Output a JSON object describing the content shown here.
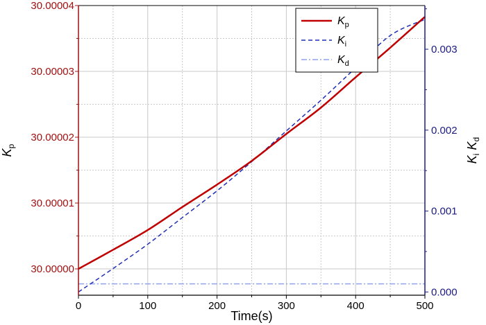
{
  "chart_data": {
    "type": "line",
    "xlabel": "Time(s)",
    "ylabel_left": {
      "base": "K",
      "sub": "p"
    },
    "ylabel_right": [
      {
        "base": "K",
        "sub": "i"
      },
      {
        "base": "K",
        "sub": "d"
      }
    ],
    "xlim": [
      0,
      500
    ],
    "ylim_left": [
      29.999996,
      30.00004
    ],
    "ylim_right": [
      -4e-05,
      0.00354
    ],
    "x_ticks": [
      0,
      100,
      200,
      300,
      400,
      500
    ],
    "x_tick_labels": [
      "0",
      "100",
      "200",
      "300",
      "400",
      "500"
    ],
    "y_left_ticks": [
      30.0,
      30.00001,
      30.00002,
      30.00003,
      30.00004
    ],
    "y_left_tick_labels": [
      "30.00000",
      "30.00001",
      "30.00002",
      "30.00003",
      "30.00004"
    ],
    "y_right_ticks": [
      0.0,
      0.001,
      0.002,
      0.003
    ],
    "y_right_tick_labels": [
      "0.000",
      "0.001",
      "0.002",
      "0.003"
    ],
    "grid": true,
    "legend_position": "top-right",
    "series": [
      {
        "name": {
          "base": "K",
          "sub": "p"
        },
        "axis": "left",
        "color": "#c00000",
        "style": "solid",
        "x": [
          0,
          50,
          100,
          150,
          200,
          250,
          300,
          350,
          400,
          450,
          500
        ],
        "y": [
          30.0,
          30.0000029,
          30.0000059,
          30.0000094,
          30.0000128,
          30.0000164,
          30.0000205,
          30.0000245,
          30.0000291,
          30.0000336,
          30.0000383
        ]
      },
      {
        "name": {
          "base": "K",
          "sub": "i"
        },
        "axis": "right",
        "color": "#1f2fb5",
        "style": "dashed",
        "x": [
          0,
          50,
          100,
          150,
          200,
          250,
          300,
          350,
          400,
          450,
          500
        ],
        "y": [
          0.0,
          0.00029,
          0.00059,
          0.00092,
          0.00125,
          0.00161,
          0.00199,
          0.00237,
          0.00277,
          0.00317,
          0.00337
        ]
      },
      {
        "name": {
          "base": "K",
          "sub": "d"
        },
        "axis": "right",
        "color": "#8fa3ef",
        "style": "dashdot",
        "x": [
          0,
          500
        ],
        "y": [
          0.0001,
          0.0001
        ]
      }
    ],
    "colors": {
      "left_axis": "#a01010",
      "right_axis": "#1a1a80",
      "grid": "#c8c8c8"
    }
  }
}
